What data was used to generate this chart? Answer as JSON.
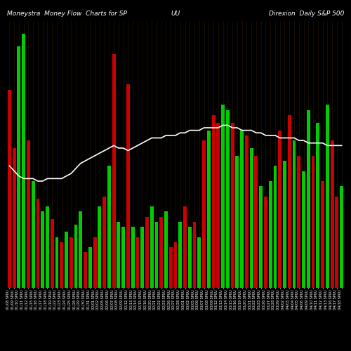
{
  "title_left": "Moneystra  Money Flow  Charts for SP",
  "title_mid": "UU",
  "title_right": "Direxion  Daily S&P 500",
  "background_color": "#000000",
  "bar_colors": [
    "red",
    "red",
    "green",
    "green",
    "red",
    "green",
    "red",
    "green",
    "green",
    "red",
    "green",
    "red",
    "green",
    "red",
    "green",
    "green",
    "red",
    "green",
    "red",
    "green",
    "red",
    "green",
    "red",
    "green",
    "green",
    "red",
    "green",
    "red",
    "green",
    "red",
    "green",
    "green",
    "red",
    "green",
    "red",
    "red",
    "green",
    "red",
    "green",
    "red",
    "green",
    "red",
    "green",
    "red",
    "red",
    "green",
    "green",
    "red",
    "green",
    "green",
    "red",
    "green",
    "red",
    "green",
    "red",
    "green",
    "green",
    "red",
    "green",
    "red",
    "green",
    "red",
    "green",
    "green",
    "red",
    "green",
    "red",
    "green",
    "red",
    "red",
    "green"
  ],
  "bar_heights": [
    0.78,
    0.55,
    0.95,
    1.0,
    0.58,
    0.42,
    0.35,
    0.3,
    0.32,
    0.27,
    0.2,
    0.18,
    0.22,
    0.2,
    0.25,
    0.3,
    0.14,
    0.16,
    0.2,
    0.32,
    0.36,
    0.48,
    0.92,
    0.26,
    0.24,
    0.8,
    0.24,
    0.2,
    0.24,
    0.28,
    0.32,
    0.26,
    0.28,
    0.3,
    0.16,
    0.18,
    0.26,
    0.32,
    0.24,
    0.26,
    0.2,
    0.58,
    0.62,
    0.68,
    0.65,
    0.72,
    0.7,
    0.65,
    0.52,
    0.62,
    0.6,
    0.55,
    0.52,
    0.4,
    0.36,
    0.42,
    0.48,
    0.62,
    0.5,
    0.68,
    0.58,
    0.52,
    0.46,
    0.7,
    0.52,
    0.65,
    0.42,
    0.72,
    0.58,
    0.36,
    0.4
  ],
  "line_values": [
    0.48,
    0.46,
    0.44,
    0.43,
    0.43,
    0.43,
    0.42,
    0.42,
    0.43,
    0.43,
    0.43,
    0.43,
    0.44,
    0.45,
    0.47,
    0.49,
    0.5,
    0.51,
    0.52,
    0.53,
    0.54,
    0.55,
    0.56,
    0.55,
    0.55,
    0.54,
    0.55,
    0.56,
    0.57,
    0.58,
    0.59,
    0.59,
    0.59,
    0.6,
    0.6,
    0.6,
    0.61,
    0.61,
    0.62,
    0.62,
    0.62,
    0.63,
    0.63,
    0.63,
    0.63,
    0.64,
    0.64,
    0.63,
    0.63,
    0.62,
    0.62,
    0.62,
    0.61,
    0.61,
    0.6,
    0.6,
    0.6,
    0.59,
    0.59,
    0.59,
    0.59,
    0.58,
    0.58,
    0.57,
    0.57,
    0.57,
    0.57,
    0.56,
    0.56,
    0.56,
    0.56
  ],
  "n_bars": 71,
  "ylim": [
    0,
    1.05
  ],
  "grid_color": "#2a1800",
  "line_color": "#ffffff",
  "text_color": "#ffffff",
  "title_fontsize": 6.5,
  "tick_fontsize": 3.5,
  "tick_labels": [
    "01/08 SPUU",
    "01/09 SPUU",
    "01/10 SPUU",
    "01/11 SPUU",
    "01/12 SPUU",
    "01/15 SPUU",
    "01/16 SPUU",
    "01/17 SPUU",
    "01/18 SPUU",
    "01/19 SPUU",
    "01/22 SPUU",
    "01/23 SPUU",
    "01/24 SPUU",
    "01/25 SPUU",
    "01/26 SPUU",
    "01/29 SPUU",
    "01/30 SPUU",
    "01/31 SPUU",
    "02/01 SPUU",
    "02/02 SPUU",
    "02/05 SPUU",
    "02/06 SPUU",
    "02/07 SPUU",
    "02/08 SPUU",
    "02/09 SPUU",
    "02/12 SPUU",
    "02/13 SPUU",
    "02/14 SPUU",
    "02/15 SPUU",
    "02/16 SPUU",
    "02/20 SPUU",
    "02/21 SPUU",
    "02/22 SPUU",
    "02/23 SPUU",
    "02/26 SPUU",
    "02/27 SPUU",
    "02/28 SPUU",
    "03/01 SPUU",
    "03/02 SPUU",
    "03/05 SPUU",
    "03/06 SPUU",
    "03/07 SPUU",
    "03/08 SPUU",
    "03/09 SPUU",
    "03/12 SPUU",
    "03/13 SPUU",
    "03/14 SPUU",
    "03/15 SPUU",
    "03/16 SPUU",
    "03/19 SPUU",
    "03/20 SPUU",
    "03/21 SPUU",
    "03/22 SPUU",
    "03/23 SPUU",
    "03/26 SPUU",
    "03/27 SPUU",
    "03/28 SPUU",
    "03/29 SPUU",
    "04/02 SPUU",
    "04/03 SPUU",
    "04/04 SPUU",
    "04/05 SPUU",
    "04/06 SPUU",
    "04/09 SPUU",
    "04/10 SPUU",
    "04/11 SPUU",
    "04/12 SPUU",
    "04/13 SPUU",
    "04/16 SPUU",
    "04/17 SPUU",
    "04/18 SPUU"
  ]
}
